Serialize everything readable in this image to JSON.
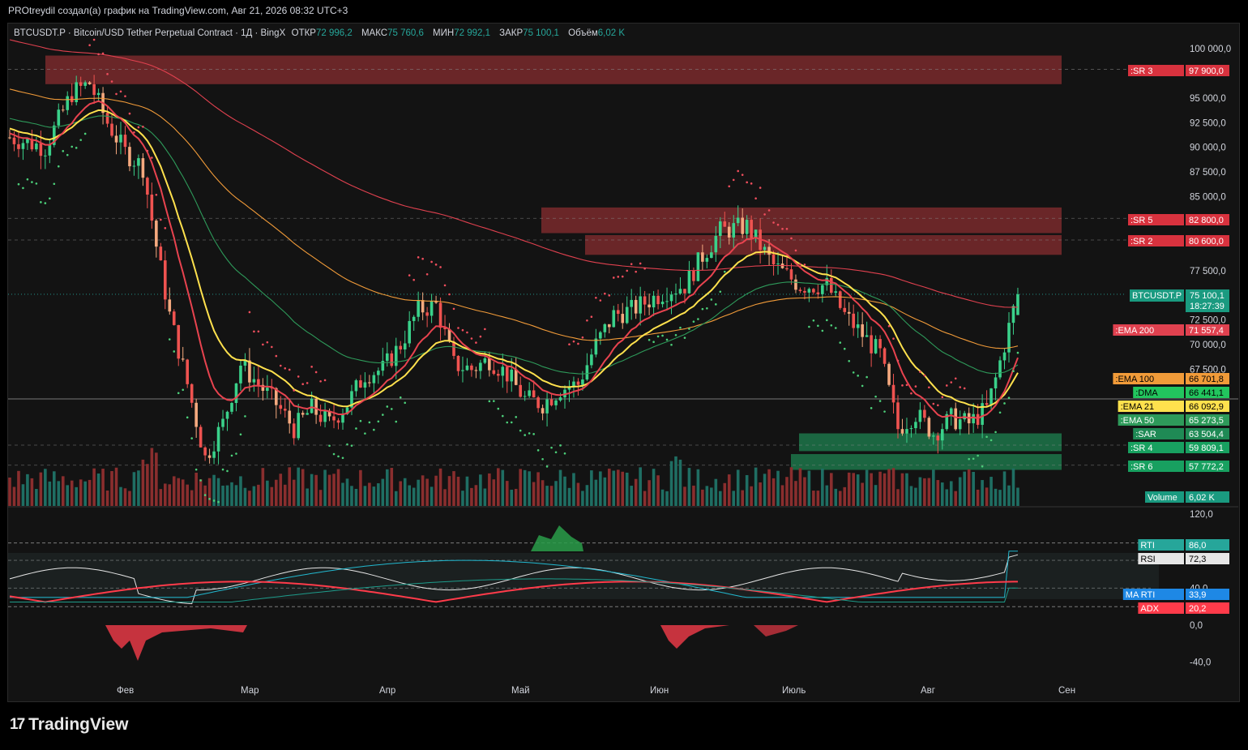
{
  "header": {
    "author_line": "PROtreydil создал(а) график на TradingView.com, Авг 21, 2026 08:32 UTC+3"
  },
  "legend": {
    "symbol": "BTCUSDT.P · Bitcoin/USD Tether Perpetual Contract · 1Д · BingX",
    "open_label": "ОТКР",
    "open": "72 996,2",
    "high_label": "МАКС",
    "high": "75 760,6",
    "low_label": "МИН",
    "low": "72 992,1",
    "close_label": "ЗАКР",
    "close": "75 100,1",
    "vol_label": "Объём",
    "vol": "6,02 K"
  },
  "brand": {
    "logo": "17",
    "name": "TradingView"
  },
  "colors": {
    "up": "#26a69a",
    "up_bright": "#3ad18a",
    "down": "#ef5350",
    "down_light": "#f5a97f",
    "ema200": "#e0414f",
    "ema100": "#f19b39",
    "ema21": "#ffe14d",
    "ema50": "#2e9a5a",
    "sr_red": "#b2363a",
    "sr_green": "#1f8a55",
    "sar_red": "#ef4e5d",
    "sar_green": "#4cd07a"
  },
  "chart_data": {
    "type": "candlestick",
    "symbol": "BTCUSDT.P",
    "timeframe": "1Д",
    "x_labels": [
      "Фев",
      "Мар",
      "Апр",
      "Май",
      "Июн",
      "Июль",
      "Авг",
      "Сен"
    ],
    "price_ticks": [
      "100 000,0",
      "95 000,0",
      "92 500,0",
      "90 000,0",
      "87 500,0",
      "85 000,0",
      "77 500,0",
      "72 500,0",
      "70 000,0",
      "67 500,0"
    ],
    "price_range": [
      52000,
      101500
    ],
    "price_ohlc_keypoints": [
      [
        "early Jan",
        91000
      ],
      [
        "mid Jan peak",
        97800
      ],
      [
        "late Jan",
        90000
      ],
      [
        "Feb 3 crash",
        60000
      ],
      [
        "mid Feb",
        68000
      ],
      [
        "early Mar",
        65000
      ],
      [
        "mid Mar",
        74000
      ],
      [
        "early Apr",
        66000
      ],
      [
        "late Apr",
        76000
      ],
      [
        "mid May peak",
        82800
      ],
      [
        "late May",
        76000
      ],
      [
        "early Jun",
        62000
      ],
      [
        "mid Jun",
        67000
      ],
      [
        "early Jul",
        58000
      ],
      [
        "mid Jul",
        66000
      ],
      [
        "early Aug",
        66500
      ],
      [
        "Aug 21 (last)",
        75100.1
      ]
    ],
    "last_close": 75100.1,
    "countdown": "18:27:39",
    "levels": [
      {
        "name": ":SR 3",
        "value": "97 900,0",
        "price": 97900,
        "zone": "red"
      },
      {
        "name": ":SR 5",
        "value": "82 800,0",
        "price": 82800,
        "zone": "red"
      },
      {
        "name": ":SR 2",
        "value": "80 600,0",
        "price": 80600,
        "zone": "red"
      },
      {
        "name": ":SR 4",
        "value": "59 809,1",
        "price": 59809.1,
        "zone": "green"
      },
      {
        "name": ":SR 6",
        "value": "57 772,2",
        "price": 57772.2,
        "zone": "green"
      }
    ],
    "indicators": [
      {
        "name": ":EMA 200",
        "value": "71 557,4",
        "price": 71557.4
      },
      {
        "name": ":EMA 100",
        "value": "66 701,8",
        "price": 66701.8
      },
      {
        "name": ":DMA",
        "value": "66 441,1",
        "price": 66441.1
      },
      {
        "name": ":EMA 21",
        "value": "66 092,9",
        "price": 66092.9
      },
      {
        "name": ":EMA 50",
        "value": "65 273,5",
        "price": 65273.5
      },
      {
        "name": ":SAR",
        "value": "63 504,4",
        "price": 63504.4
      }
    ],
    "volume": {
      "label": "Volume",
      "value": "6,02 K"
    },
    "oscillator": {
      "ticks": [
        "120,0",
        "40,0",
        "0,0",
        "-40,0"
      ],
      "range": [
        -40,
        120
      ],
      "series": [
        {
          "name": "RTI",
          "value": "86,0"
        },
        {
          "name": "RSI",
          "value": "72,3"
        },
        {
          "name": "MA RTI",
          "value": "33,9"
        },
        {
          "name": "ADX",
          "value": "20,2"
        }
      ]
    }
  }
}
